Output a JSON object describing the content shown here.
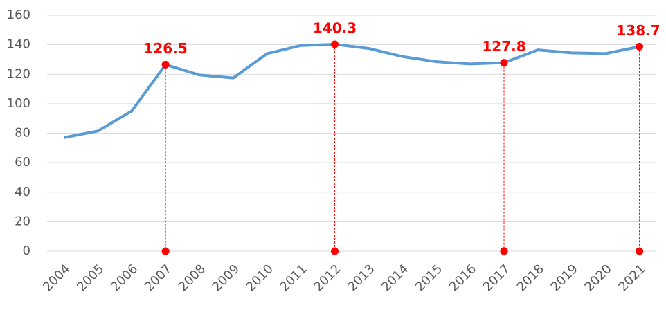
{
  "chart_data": {
    "type": "line",
    "categories": [
      "2004",
      "2005",
      "2006",
      "2007",
      "2008",
      "2009",
      "2010",
      "2011",
      "2012",
      "2013",
      "2014",
      "2015",
      "2016",
      "2017",
      "2018",
      "2019",
      "2020",
      "2021"
    ],
    "series": [
      {
        "color": "#5b9bd5",
        "values": [
          77,
          81.5,
          95,
          126.5,
          119.5,
          117.5,
          134,
          139.5,
          140.3,
          137.5,
          132,
          128.5,
          127,
          127.8,
          136.5,
          134.5,
          134,
          138.7
        ]
      }
    ],
    "ylim": [
      0,
      160
    ],
    "yticks": [
      0,
      20,
      40,
      60,
      80,
      100,
      120,
      140,
      160
    ],
    "grid": true,
    "highlights": [
      {
        "x": "2007",
        "value": 126.5
      },
      {
        "x": "2012",
        "value": 140.3
      },
      {
        "x": "2017",
        "value": 127.8
      },
      {
        "x": "2021",
        "value": 138.7
      }
    ],
    "highlight_color": "#ff0000"
  }
}
